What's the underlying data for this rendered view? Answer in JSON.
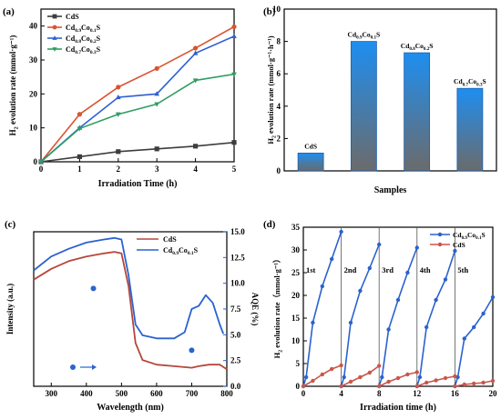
{
  "chart_data": [
    {
      "panel": "(a)",
      "type": "line",
      "xlabel": "Irradiation Time (h)",
      "ylabel": "H2 evolution rate (mmol·g⁻¹)",
      "xlim": [
        0,
        5
      ],
      "ylim": [
        0,
        45
      ],
      "x_ticks": [
        "0",
        "1",
        "2",
        "3",
        "4",
        "5"
      ],
      "y_ticks": [
        "0",
        "10",
        "20",
        "30",
        "40"
      ],
      "legend": "top-left",
      "series": [
        {
          "name": "CdS",
          "color": "#3d3d3d",
          "marker": "square",
          "x": [
            0,
            1,
            2,
            3,
            4,
            5
          ],
          "y": [
            0,
            1.5,
            3,
            3.8,
            4.6,
            5.7
          ]
        },
        {
          "name": "Cd0.9Co0.1S",
          "color": "#d9542f",
          "marker": "circle",
          "x": [
            0,
            1,
            2,
            3,
            4,
            5
          ],
          "y": [
            0,
            14,
            22,
            27.5,
            33.5,
            39.8
          ]
        },
        {
          "name": "Cd0.8Co0.2S",
          "color": "#3060d6",
          "marker": "triangle",
          "x": [
            0,
            1,
            2,
            3,
            4,
            5
          ],
          "y": [
            0,
            10,
            19,
            20,
            32,
            37
          ]
        },
        {
          "name": "Cd0.7Co0.3S",
          "color": "#2f9e62",
          "marker": "triangle-down",
          "x": [
            0,
            1,
            2,
            3,
            4,
            5
          ],
          "y": [
            0,
            9.8,
            14,
            17,
            24,
            25.8
          ]
        }
      ]
    },
    {
      "panel": "(b)",
      "type": "bar",
      "xlabel": "Samples",
      "ylabel": "H2 evolution rate (mmol·g⁻¹·h⁻¹)",
      "ylim": [
        0,
        10
      ],
      "y_ticks": [
        "0",
        "2",
        "4",
        "6",
        "8",
        "10"
      ],
      "categories": [
        "CdS",
        "Cd0.9Co0.1S",
        "Cd0.8Co0.2S",
        "Cd0.7Co0.3S"
      ],
      "values": [
        1.1,
        8.0,
        7.3,
        5.1
      ],
      "bar_gradient": [
        "#1e8ef0",
        "#6b6b6b"
      ]
    },
    {
      "panel": "(c)",
      "type": "line",
      "xlabel": "Wavelength (nm)",
      "ylabel": "Intensity (a.u.)",
      "y2label": "AQE (%)",
      "xlim": [
        250,
        800
      ],
      "y2lim": [
        0,
        15
      ],
      "x_ticks": [
        "300",
        "400",
        "500",
        "600",
        "700",
        "800"
      ],
      "y2_ticks": [
        "0.0",
        "2.5",
        "5.0",
        "7.5",
        "10.0",
        "12.5",
        "15.0"
      ],
      "legend": "top-right",
      "series": [
        {
          "name": "CdS",
          "color": "#b5473a",
          "x": [
            250,
            300,
            350,
            400,
            450,
            480,
            500,
            520,
            540,
            560,
            600,
            650,
            700,
            720,
            750,
            780,
            800
          ],
          "y": [
            0.69,
            0.76,
            0.81,
            0.84,
            0.86,
            0.87,
            0.86,
            0.65,
            0.28,
            0.17,
            0.14,
            0.13,
            0.12,
            0.13,
            0.14,
            0.14,
            0.11
          ]
        },
        {
          "name": "Cd0.9Co0.1S",
          "color": "#2a62d0",
          "x": [
            250,
            300,
            350,
            400,
            450,
            480,
            500,
            520,
            540,
            560,
            600,
            650,
            680,
            700,
            720,
            740,
            760,
            780,
            790
          ],
          "y": [
            0.75,
            0.84,
            0.89,
            0.93,
            0.95,
            0.96,
            0.95,
            0.72,
            0.4,
            0.33,
            0.31,
            0.31,
            0.35,
            0.5,
            0.52,
            0.59,
            0.54,
            0.4,
            0.34
          ]
        }
      ],
      "aqe_points": [
        {
          "x": 420,
          "aqe": 9.5
        },
        {
          "x": 700,
          "aqe": 3.5
        }
      ],
      "arrow_label": "→",
      "arrow_color": "#2a62d0"
    },
    {
      "panel": "(d)",
      "type": "line",
      "xlabel": "Irradiation time (h)",
      "ylabel": "H2 evolution rate（mmol·g⁻¹）",
      "xlim": [
        0,
        20
      ],
      "ylim": [
        0,
        35
      ],
      "x_ticks": [
        "0",
        "4",
        "8",
        "12",
        "16",
        "20"
      ],
      "y_ticks": [
        "0",
        "5",
        "10",
        "15",
        "20",
        "25",
        "30",
        "35"
      ],
      "cycle_labels": [
        "1st",
        "2nd",
        "3rd",
        "4th",
        "5th"
      ],
      "legend": "top-right",
      "series": [
        {
          "name": "Cd0.9Co0.1S",
          "color": "#2a62d0",
          "cycles": [
            {
              "x": [
                0,
                0.3,
                1,
                2,
                3,
                4
              ],
              "y": [
                0,
                2,
                14,
                22,
                28,
                34
              ]
            },
            {
              "x": [
                4,
                4.3,
                5,
                6,
                7,
                8
              ],
              "y": [
                0,
                2,
                14,
                21,
                26,
                31.2
              ]
            },
            {
              "x": [
                8,
                8.3,
                9,
                10,
                11,
                12
              ],
              "y": [
                0,
                2,
                12.5,
                19,
                25,
                30.5
              ]
            },
            {
              "x": [
                12,
                12.3,
                13,
                14,
                15,
                16
              ],
              "y": [
                0,
                2,
                13,
                19,
                23.5,
                29.8
              ]
            },
            {
              "x": [
                16,
                16.3,
                17,
                18,
                19,
                20
              ],
              "y": [
                0,
                2,
                10.5,
                13,
                16,
                19.6
              ]
            }
          ]
        },
        {
          "name": "CdS",
          "color": "#c9564a",
          "cycles": [
            {
              "x": [
                0,
                1,
                2,
                3,
                4
              ],
              "y": [
                0,
                1.2,
                2.6,
                3.8,
                4.6
              ]
            },
            {
              "x": [
                4,
                5,
                6,
                7,
                8
              ],
              "y": [
                0,
                1,
                2,
                3,
                4.5
              ]
            },
            {
              "x": [
                8,
                9,
                10,
                11,
                12
              ],
              "y": [
                0,
                1,
                1.8,
                2.6,
                3.1
              ]
            },
            {
              "x": [
                12,
                13,
                14,
                15,
                16
              ],
              "y": [
                0,
                0.8,
                1.3,
                1.8,
                2.2
              ]
            },
            {
              "x": [
                16,
                17,
                18,
                19,
                20
              ],
              "y": [
                0,
                0.4,
                0.6,
                0.8,
                1.2
              ]
            }
          ]
        }
      ]
    }
  ]
}
